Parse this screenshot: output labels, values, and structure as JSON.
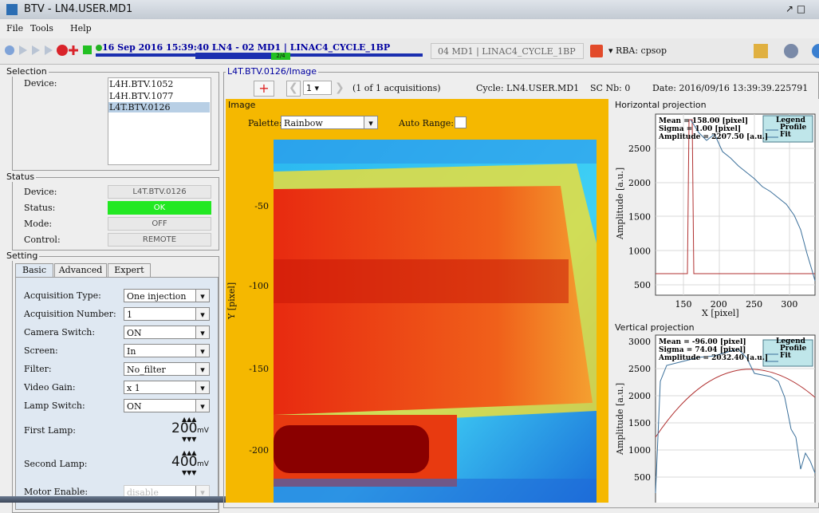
{
  "window": {
    "title": "BTV - LN4.USER.MD1"
  },
  "menu": [
    "File",
    "Tools",
    "Help"
  ],
  "toolbar": {
    "timestamp": "16 Sep 2016  15:39:40  LN4 - 02 MD1 | LINAC4_CYCLE_1BP",
    "progress": "2/4",
    "cycle": "04 MD1 | LINAC4_CYCLE_1BP",
    "rba": "RBA: cpsop"
  },
  "selection": {
    "title": "Selection",
    "label": "Device:",
    "devices": [
      "L4H.BTV.1052",
      "L4H.BTV.1077",
      "L4T.BTV.0126"
    ]
  },
  "status": {
    "title": "Status",
    "rows": [
      [
        "Device:",
        "L4T.BTV.0126"
      ],
      [
        "Status:",
        "OK"
      ],
      [
        "Mode:",
        "OFF"
      ],
      [
        "Control:",
        "REMOTE"
      ]
    ]
  },
  "setting": {
    "title": "Setting",
    "tabs": [
      "Basic",
      "Advanced",
      "Expert"
    ],
    "rows": [
      [
        "Acquisition Type:",
        "One injection"
      ],
      [
        "Acquisition Number:",
        "1"
      ],
      [
        "Camera Switch:",
        "ON"
      ],
      [
        "Screen:",
        "In"
      ],
      [
        "Filter:",
        "No_filter"
      ],
      [
        "Video Gain:",
        "x 1"
      ],
      [
        "Lamp Switch:",
        "ON"
      ]
    ],
    "lamps": [
      {
        "label": "First Lamp:",
        "value": 200,
        "unit": "mV"
      },
      {
        "label": "Second Lamp:",
        "value": 400,
        "unit": "mV"
      }
    ],
    "motor": [
      "Motor Enable:",
      "disable"
    ]
  },
  "image_panel": {
    "title": "L4T.BTV.0126/Image",
    "index": 1,
    "acquisitions": "(1 of 1 acquisitions)",
    "cycle": "Cycle: LN4.USER.MD1",
    "sc": "SC Nb: 0",
    "date": "Date:  2016/09/16 13:39:39.225791",
    "image_title": "Image",
    "palette_label": "Palette:",
    "palette": "Rainbow",
    "auto_range": "Auto Range:",
    "y_label": "Y [pixel]",
    "y_ticks": [
      -50,
      -100,
      -150,
      -200
    ]
  },
  "horizontal": {
    "title": "Horizontal projection",
    "stats": [
      "Mean = 158.00 [pixel]",
      "Sigma = 1.00 [pixel]",
      "Amplitude = 2207.50 [a.u.]"
    ],
    "legend": [
      "Legend",
      "Profile",
      "Fit"
    ],
    "y_label": "Amplitude [a.u.]",
    "x_label": "X [pixel]",
    "y_ticks": [
      2500,
      2000,
      1500,
      1000,
      500
    ],
    "x_ticks": [
      150,
      200,
      250,
      300
    ]
  },
  "vertical": {
    "title": "Vertical projection",
    "stats": [
      "Mean = -96.00 [pixel]",
      "Sigma = 74.04 [pixel]",
      "Amplitude = 2032.40 [a.u.]"
    ],
    "legend": [
      "Legend",
      "Profile",
      "Fit"
    ],
    "y_label": "Amplitude [a.u.]",
    "y_ticks": [
      3000,
      2500,
      2000,
      1500,
      1000,
      500
    ]
  }
}
